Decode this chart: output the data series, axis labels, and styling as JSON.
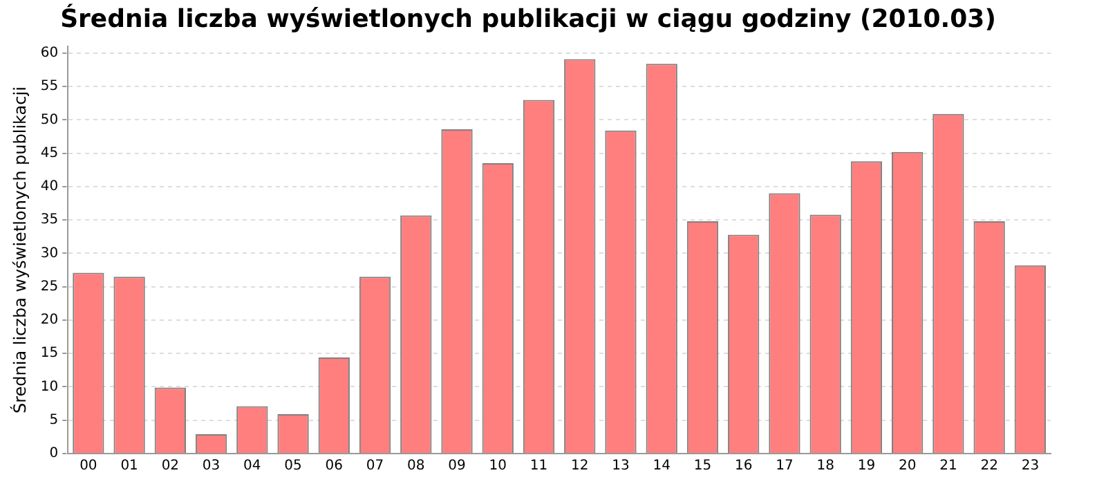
{
  "chart_data": {
    "type": "bar",
    "title": "Średnia liczba wyświetlonych publikacji w ciągu godziny (2010.03)",
    "ylabel": "Średnia liczba wyświetlonych publikacji",
    "categories": [
      "00",
      "01",
      "02",
      "03",
      "04",
      "05",
      "06",
      "07",
      "08",
      "09",
      "10",
      "11",
      "12",
      "13",
      "14",
      "15",
      "16",
      "17",
      "18",
      "19",
      "20",
      "21",
      "22",
      "23"
    ],
    "values": [
      27.1,
      26.5,
      9.9,
      2.9,
      7.1,
      5.9,
      14.4,
      26.5,
      35.7,
      48.6,
      43.5,
      53.0,
      59.1,
      48.4,
      58.4,
      34.8,
      32.8,
      39.0,
      35.8,
      43.8,
      45.2,
      50.9,
      34.8,
      28.2
    ],
    "color": "#ff7f7f",
    "ylim": [
      0,
      61
    ],
    "yticks": [
      0,
      5,
      10,
      15,
      20,
      25,
      30,
      35,
      40,
      45,
      50,
      55,
      60
    ],
    "grid": "y",
    "legend": false
  }
}
